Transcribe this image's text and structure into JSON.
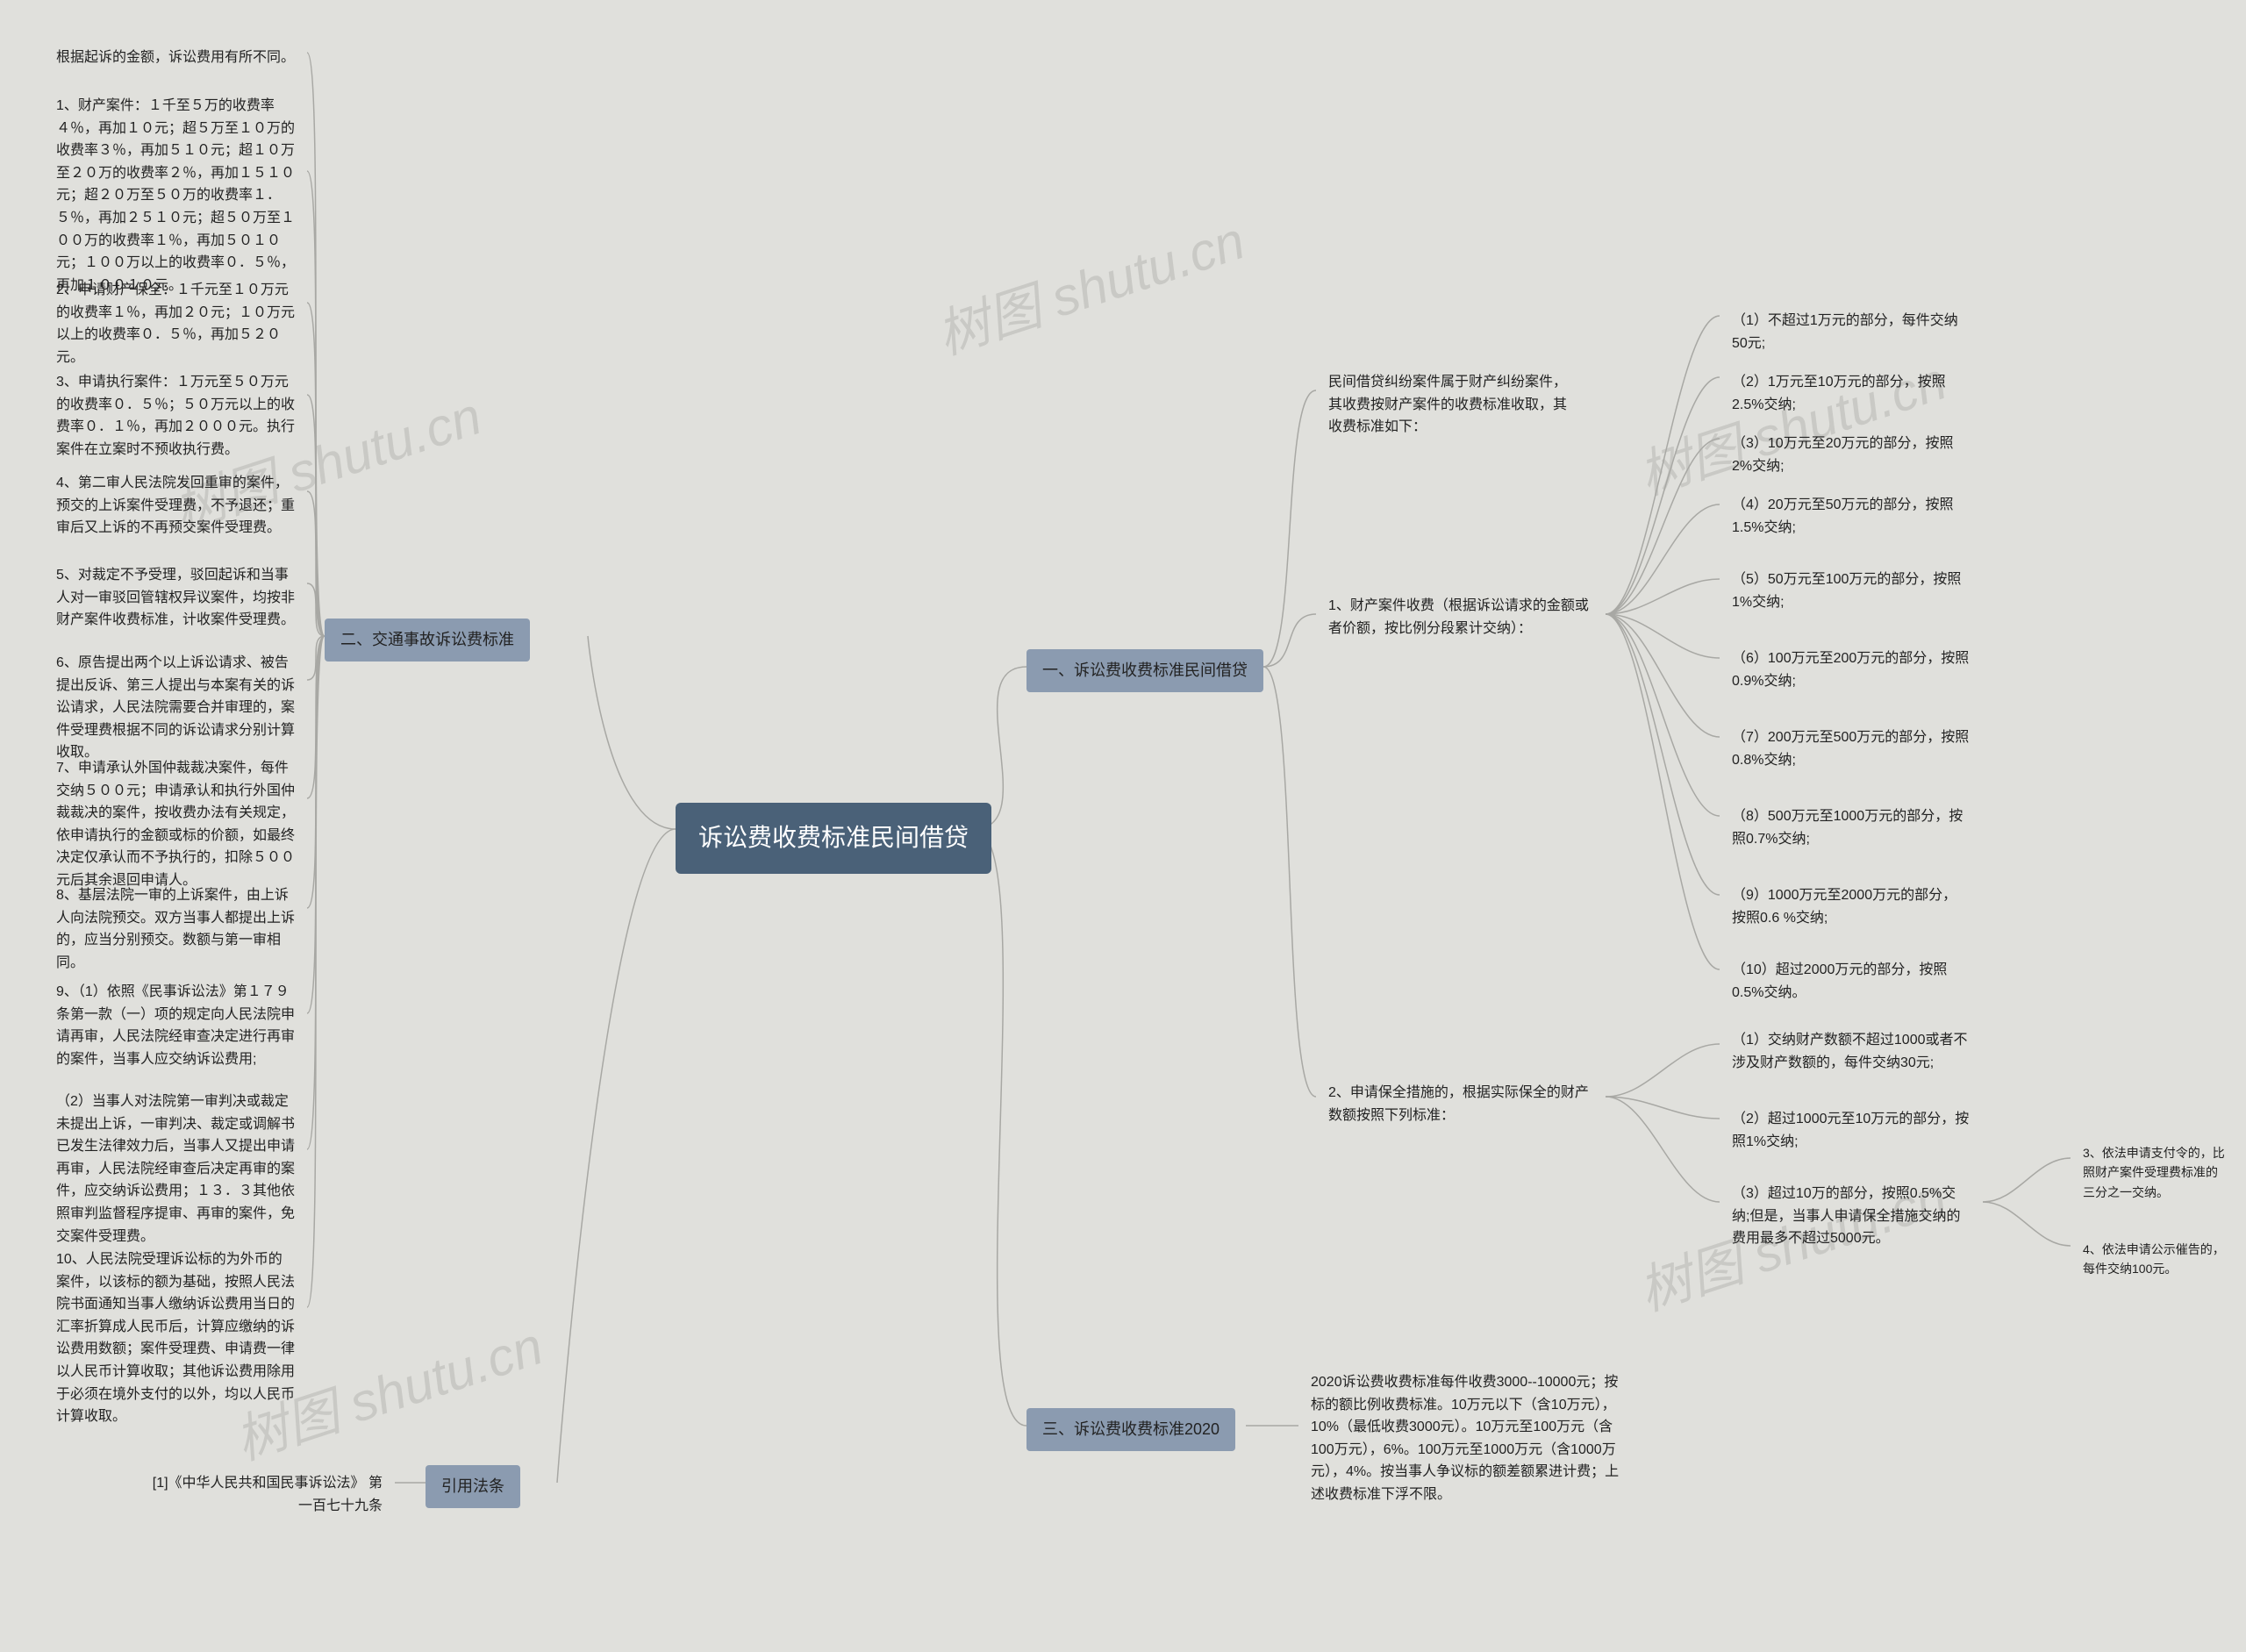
{
  "watermarks": [
    "树图 shutu.cn",
    "树图 shutu.cn",
    "树图 shutu.cn",
    "树图 shutu.cn"
  ],
  "root": {
    "label": "诉讼费收费标准民间借贷"
  },
  "right": {
    "a": {
      "label": "一、诉讼费收费标准民间借贷",
      "intro": "民间借贷纠纷案件属于财产纠纷案件，其收费按财产案件的收费标准收取，其收费标准如下：",
      "c1": {
        "label": "1、财产案件收费（根据诉讼请求的金额或者价额，按比例分段累计交纳）：",
        "items": [
          "（1）不超过1万元的部分，每件交纳50元;",
          "（2）1万元至10万元的部分，按照2.5%交纳;",
          "（3）10万元至20万元的部分，按照2%交纳;",
          "（4）20万元至50万元的部分，按照1.5%交纳;",
          "（5）50万元至100万元的部分，按照1%交纳;",
          "（6）100万元至200万元的部分，按照0.9%交纳;",
          "（7）200万元至500万元的部分，按照0.8%交纳;",
          "（8）500万元至1000万元的部分，按照0.7%交纳;",
          "（9）1000万元至2000万元的部分，按照0.6 %交纳;",
          "（10）超过2000万元的部分，按照0.5%交纳。"
        ]
      },
      "c2": {
        "label": "2、申请保全措施的，根据实际保全的财产数额按照下列标准：",
        "items": [
          "（1）交纳财产数额不超过1000或者不涉及财产数额的，每件交纳30元;",
          "（2）超过1000元至10万元的部分，按照1%交纳;",
          "（3）超过10万的部分，按照0.5%交纳;但是，当事人申请保全措施交纳的费用最多不超过5000元。"
        ],
        "sub3": [
          "3、依法申请支付令的，比照财产案件受理费标准的三分之一交纳。",
          "4、依法申请公示催告的，每件交纳100元。"
        ]
      }
    },
    "b": {
      "label": "三、诉讼费收费标准2020",
      "text": "2020诉讼费收费标准每件收费3000--10000元；按标的额比例收费标准。10万元以下（含10万元），10%（最低收费3000元）。10万元至100万元（含100万元），6%。100万元至1000万元（含1000万元），4%。按当事人争议标的额差额累进计费；上述收费标准下浮不限。"
    }
  },
  "left": {
    "a": {
      "label": "二、交通事故诉讼费标准",
      "items": [
        "根据起诉的金额，诉讼费用有所不同。",
        "1、财产案件：１千至５万的收费率４％，再加１０元；超５万至１０万的收费率３％，再加５１０元；超１０万至２０万的收费率２％，再加１５１０元；超２０万至５０万的收费率１．５％，再加２５１０元；超５０万至１００万的收费率１％，再加５０１０元；１００万以上的收费率０．５％，再加１００１０元。",
        "2、申请财产保全：１千元至１０万元的收费率１％，再加２０元；１０万元以上的收费率０．５％，再加５２０元。",
        "3、申请执行案件：１万元至５０万元的收费率０．５％；５０万元以上的收费率０．１％，再加２０００元。执行案件在立案时不预收执行费。",
        "4、第二审人民法院发回重审的案件，预交的上诉案件受理费，不予退还；重审后又上诉的不再预交案件受理费。",
        "5、对裁定不予受理，驳回起诉和当事人对一审驳回管辖权异议案件，均按非财产案件收费标准，计收案件受理费。",
        "6、原告提出两个以上诉讼请求、被告提出反诉、第三人提出与本案有关的诉讼请求，人民法院需要合并审理的，案件受理费根据不同的诉讼请求分别计算收取。",
        "7、申请承认外国仲裁裁决案件，每件交纳５００元；申请承认和执行外国仲裁裁决的案件，按收费办法有关规定，依申请执行的金额或标的价额，如最终决定仅承认而不予执行的，扣除５００元后其余退回申请人。",
        "8、基层法院一审的上诉案件，由上诉人向法院预交。双方当事人都提出上诉的，应当分别预交。数额与第一审相同。",
        "9、（1）依照《民事诉讼法》第１７９条第一款（一）项的规定向人民法院申请再审，人民法院经审查决定进行再审的案件，当事人应交纳诉讼费用;",
        "（2）当事人对法院第一审判决或裁定未提出上诉，一审判决、裁定或调解书已发生法律效力后，当事人又提出申请再审，人民法院经审查后决定再审的案件，应交纳诉讼费用；１３．３其他依照审判监督程序提审、再审的案件，免交案件受理费。",
        "10、人民法院受理诉讼标的为外币的案件，以该标的额为基础，按照人民法院书面通知当事人缴纳诉讼费用当日的汇率折算成人民币后，计算应缴纳的诉讼费用数额；案件受理费、申请费一律以人民币计算收取；其他诉讼费用除用于必须在境外支付的以外，均以人民币计算收取。"
      ]
    },
    "b": {
      "label": "引用法条",
      "item": "[1]《中华人民共和国民事诉讼法》 第一百七十九条"
    }
  },
  "colors": {
    "bg": "#e0e0dc",
    "root_bg": "#4a6178",
    "branch_bg": "#8b9bb0",
    "connector": "#a8a8a4",
    "text": "#222222",
    "root_text": "#ffffff"
  }
}
